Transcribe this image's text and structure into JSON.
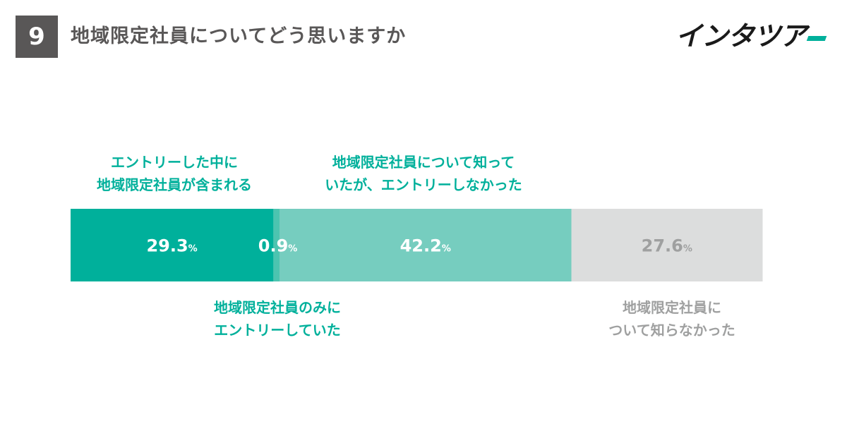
{
  "header": {
    "question_number": "9",
    "question_text": "地域限定社員についてどう思いますか"
  },
  "logo": {
    "text": "インタツア"
  },
  "colors": {
    "dark_teal": "#00b09b",
    "mid_teal": "#4cc4b0",
    "light_teal": "#76cdbf",
    "gray": "#dcdddd",
    "gray_text": "#9fa0a0",
    "header_gray": "#595757"
  },
  "chart_data": {
    "type": "bar",
    "orientation": "horizontal-stacked-100",
    "unit": "%",
    "segments": [
      {
        "name": "エントリーした中に地域限定社員が含まれる",
        "value": 29.3,
        "label": "29.3",
        "color": "#00b09b",
        "text_color": "#ffffff"
      },
      {
        "name": "地域限定社員のみにエントリーしていた",
        "value": 0.9,
        "label": "0.9",
        "color": "#4cc4b0",
        "text_color": "#ffffff"
      },
      {
        "name": "地域限定社員について知っていたが、エントリーしなかった",
        "value": 42.2,
        "label": "42.2",
        "color": "#76cdbf",
        "text_color": "#ffffff"
      },
      {
        "name": "地域限定社員について知らなかった",
        "value": 27.6,
        "label": "27.6",
        "color": "#dcdddd",
        "text_color": "#9fa0a0"
      }
    ]
  },
  "labels": {
    "seg0": {
      "line1": "エントリーした中に",
      "line2": "地域限定社員が含まれる"
    },
    "seg1": {
      "line1": "地域限定社員のみに",
      "line2": "エントリーしていた"
    },
    "seg2": {
      "line1": "地域限定社員について知って",
      "line2": "いたが、エントリーしなかった"
    },
    "seg3": {
      "line1": "地域限定社員に",
      "line2": "ついて知らなかった"
    }
  }
}
